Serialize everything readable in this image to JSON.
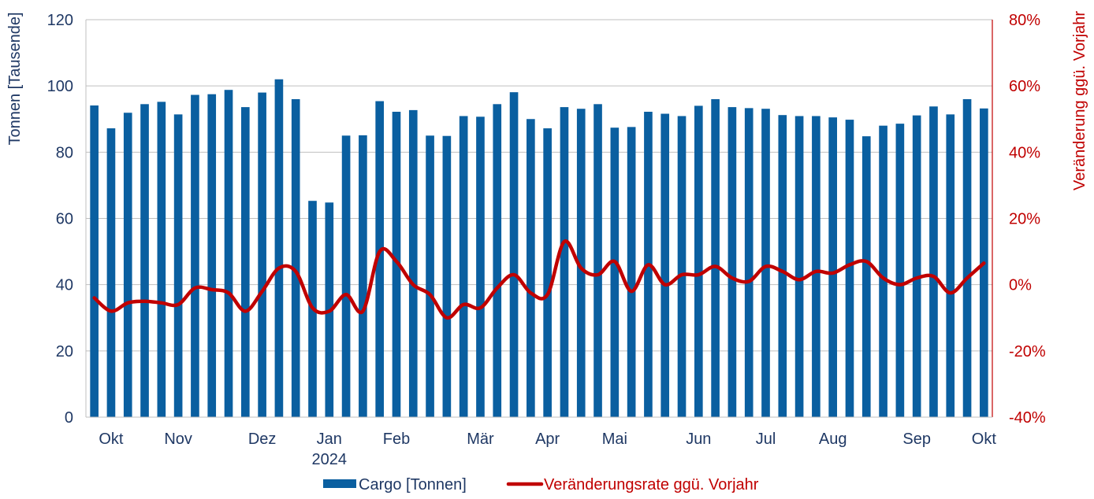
{
  "chart_data": {
    "type": "bar+line",
    "colors": {
      "bar": "#0A5FA0",
      "line": "#C00000",
      "left_axis_text": "#1F3864",
      "right_axis_text": "#C00000",
      "grid": "#BFBFBF"
    },
    "left_axis": {
      "label": "Tonnen [Tausende]",
      "range": [
        0,
        120
      ],
      "ticks": [
        "0",
        "20",
        "40",
        "60",
        "80",
        "100",
        "120"
      ]
    },
    "right_axis": {
      "label": "Veränderung ggü. Vorjahr",
      "range": [
        -40,
        80
      ],
      "ticks": [
        "-40%",
        "-20%",
        "0%",
        "20%",
        "40%",
        "60%",
        "80%"
      ]
    },
    "x_labels": [
      {
        "label": "Okt",
        "index": 1
      },
      {
        "label": "Nov",
        "index": 5
      },
      {
        "label": "Dez",
        "index": 10
      },
      {
        "label": "Jan",
        "index": 14
      },
      {
        "label": "Feb",
        "index": 18
      },
      {
        "label": "Mär",
        "index": 23
      },
      {
        "label": "Apr",
        "index": 27
      },
      {
        "label": "Mai",
        "index": 31
      },
      {
        "label": "Jun",
        "index": 36
      },
      {
        "label": "Jul",
        "index": 40
      },
      {
        "label": "Aug",
        "index": 44
      },
      {
        "label": "Sep",
        "index": 49
      },
      {
        "label": "Okt",
        "index": 53
      }
    ],
    "year_label": {
      "label": "2024",
      "index": 14
    },
    "series": [
      {
        "name": "Cargo [Tonnen]",
        "type": "bar",
        "axis": "left",
        "values": [
          94.1,
          87.2,
          91.9,
          94.5,
          95.2,
          91.4,
          97.3,
          97.5,
          98.8,
          93.6,
          98.0,
          102.0,
          96.0,
          65.3,
          64.8,
          85.0,
          85.1,
          95.4,
          92.2,
          92.7,
          85.0,
          84.9,
          90.9,
          90.7,
          94.5,
          98.1,
          90.0,
          87.2,
          93.6,
          93.1,
          94.5,
          87.4,
          87.6,
          92.2,
          91.6,
          90.9,
          94.0,
          96.0,
          93.6,
          93.3,
          93.1,
          91.2,
          90.9,
          90.9,
          90.5,
          89.8,
          84.8,
          88.0,
          88.6,
          91.1,
          93.8,
          91.4,
          96.0,
          93.2
        ]
      },
      {
        "name": "Veränderungsrate ggü. Vorjahr",
        "type": "line",
        "axis": "right",
        "values": [
          -4.0,
          -8.0,
          -5.5,
          -5.0,
          -5.5,
          -6.0,
          -1.0,
          -1.5,
          -2.5,
          -8.0,
          -2.0,
          5.0,
          4.0,
          -7.0,
          -8.0,
          -3.0,
          -8.0,
          10.0,
          7.0,
          0.0,
          -3.0,
          -10.0,
          -6.0,
          -7.0,
          -1.0,
          3.0,
          -2.5,
          -3.0,
          13.0,
          5.0,
          3.0,
          7.0,
          -2.0,
          6.0,
          0.0,
          3.0,
          3.0,
          5.5,
          2.0,
          1.0,
          5.5,
          4.0,
          1.5,
          4.0,
          3.5,
          6.0,
          7.0,
          2.0,
          0.0,
          2.0,
          2.5,
          -2.5,
          2.0,
          6.5
        ]
      }
    ],
    "legend": {
      "position": "bottom-center",
      "entries": [
        "Cargo [Tonnen]",
        "Veränderungsrate ggü. Vorjahr"
      ]
    }
  }
}
